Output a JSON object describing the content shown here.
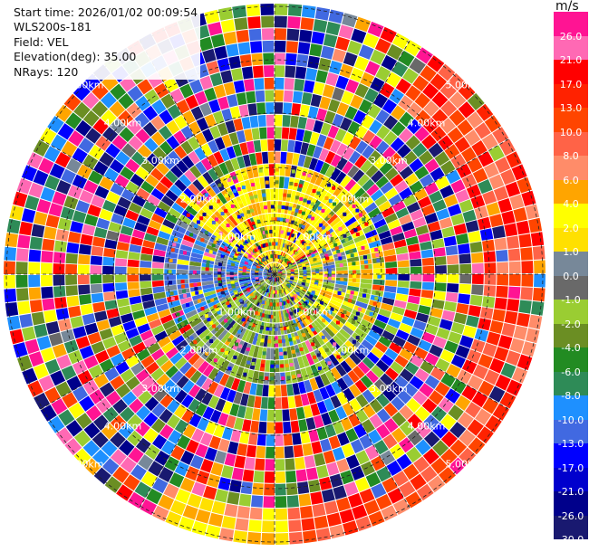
{
  "info": {
    "start_time": "Start time: 2026/01/02 00:09:54",
    "instrument": "WLS200s-181",
    "field": "Field: VEL",
    "elevation": "Elevation(deg): 35.00",
    "nrays": "NRays: 120"
  },
  "colorbar": {
    "unit": "m/s",
    "levels": [
      "26.0",
      "21.0",
      "17.0",
      "13.0",
      "10.0",
      "8.0",
      "6.0",
      "4.0",
      "2.0",
      "1.0",
      "0.0",
      "-1.0",
      "-2.0",
      "-4.0",
      "-6.0",
      "-8.0",
      "-10.0",
      "-13.0",
      "-17.0",
      "-21.0",
      "-26.0",
      "-30.0"
    ],
    "colors": [
      "#ff1493",
      "#ff69b4",
      "#ff0000",
      "#ff2200",
      "#ff4500",
      "#ff6347",
      "#ff8c69",
      "#ffa500",
      "#ffff00",
      "#ffe000",
      "#778899",
      "#696969",
      "#9acd32",
      "#6b8e23",
      "#228b22",
      "#2e8b57",
      "#1e90ff",
      "#4169e1",
      "#0000ff",
      "#0000cd",
      "#00008b",
      "#191970"
    ]
  },
  "range_rings": {
    "labels": [
      "1.00km",
      "2.00km",
      "3.00km",
      "4.00km",
      "5.00km"
    ]
  }
}
